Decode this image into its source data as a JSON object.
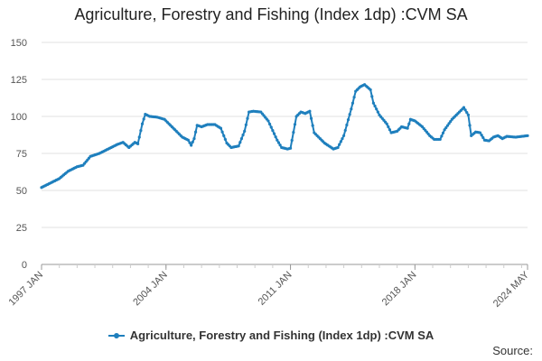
{
  "chart_data": {
    "type": "line",
    "title": "Agriculture, Forestry and Fishing (Index 1dp) :CVM SA",
    "xlabel": "",
    "ylabel": "",
    "ylim": [
      0,
      150
    ],
    "y_ticks": [
      "0",
      "25",
      "50",
      "75",
      "100",
      "125",
      "150"
    ],
    "x_ticks": [
      "1997 JAN",
      "2004 JAN",
      "2011 JAN",
      "2018 JAN",
      "2024 MAY"
    ],
    "grid": "horizontal",
    "legend_position": "bottom",
    "color": "#1e7fbd",
    "series": [
      {
        "name": "Agriculture, Forestry and Fishing (Index 1dp) :CVM SA",
        "points": [
          [
            "1997-01",
            52
          ],
          [
            "1997-07",
            55
          ],
          [
            "1998-01",
            58
          ],
          [
            "1998-07",
            63
          ],
          [
            "1999-01",
            66
          ],
          [
            "1999-05",
            67
          ],
          [
            "1999-10",
            73
          ],
          [
            "2000-04",
            75
          ],
          [
            "2000-10",
            78
          ],
          [
            "2001-04",
            81
          ],
          [
            "2001-08",
            82.5
          ],
          [
            "2001-12",
            79
          ],
          [
            "2002-04",
            82.5
          ],
          [
            "2002-06",
            81.5
          ],
          [
            "2002-09",
            95
          ],
          [
            "2002-11",
            101.5
          ],
          [
            "2003-02",
            100
          ],
          [
            "2003-07",
            99.5
          ],
          [
            "2003-12",
            98
          ],
          [
            "2004-06",
            92
          ],
          [
            "2004-12",
            86
          ],
          [
            "2005-04",
            84
          ],
          [
            "2005-06",
            80.5
          ],
          [
            "2005-08",
            85
          ],
          [
            "2005-10",
            94
          ],
          [
            "2006-01",
            93
          ],
          [
            "2006-05",
            94.5
          ],
          [
            "2006-10",
            94.5
          ],
          [
            "2007-02",
            92
          ],
          [
            "2007-06",
            82
          ],
          [
            "2007-09",
            79
          ],
          [
            "2008-02",
            80
          ],
          [
            "2008-06",
            90
          ],
          [
            "2008-09",
            103
          ],
          [
            "2008-12",
            103.5
          ],
          [
            "2009-05",
            103
          ],
          [
            "2009-10",
            97
          ],
          [
            "2010-04",
            84
          ],
          [
            "2010-07",
            79
          ],
          [
            "2010-11",
            78
          ],
          [
            "2011-01",
            78.5
          ],
          [
            "2011-05",
            100
          ],
          [
            "2011-08",
            103
          ],
          [
            "2011-11",
            102
          ],
          [
            "2012-02",
            103.5
          ],
          [
            "2012-05",
            89
          ],
          [
            "2012-09",
            85
          ],
          [
            "2012-12",
            82
          ],
          [
            "2013-03",
            80
          ],
          [
            "2013-06",
            78
          ],
          [
            "2013-09",
            79
          ],
          [
            "2014-01",
            87
          ],
          [
            "2014-06",
            105
          ],
          [
            "2014-09",
            117
          ],
          [
            "2014-12",
            120
          ],
          [
            "2015-03",
            121.5
          ],
          [
            "2015-07",
            118
          ],
          [
            "2015-09",
            109
          ],
          [
            "2016-01",
            101
          ],
          [
            "2016-06",
            95
          ],
          [
            "2016-09",
            89
          ],
          [
            "2017-01",
            90
          ],
          [
            "2017-04",
            93
          ],
          [
            "2017-08",
            92
          ],
          [
            "2017-10",
            98
          ],
          [
            "2018-01",
            97
          ],
          [
            "2018-06",
            93
          ],
          [
            "2018-11",
            87
          ],
          [
            "2019-02",
            84.5
          ],
          [
            "2019-06",
            84.5
          ],
          [
            "2019-09",
            91
          ],
          [
            "2020-02",
            98
          ],
          [
            "2020-06",
            102
          ],
          [
            "2020-10",
            106
          ],
          [
            "2021-01",
            101
          ],
          [
            "2021-03",
            87
          ],
          [
            "2021-06",
            89.5
          ],
          [
            "2021-09",
            89
          ],
          [
            "2021-12",
            84
          ],
          [
            "2022-03",
            83.5
          ],
          [
            "2022-06",
            86
          ],
          [
            "2022-09",
            87
          ],
          [
            "2022-12",
            85
          ],
          [
            "2023-03",
            86.5
          ],
          [
            "2023-09",
            86
          ],
          [
            "2024-01",
            86.5
          ],
          [
            "2024-05",
            87
          ]
        ]
      }
    ]
  },
  "source_label": "Source:"
}
